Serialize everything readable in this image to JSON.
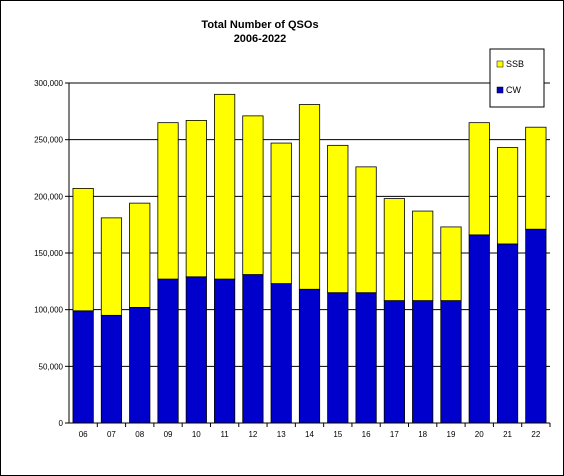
{
  "chart_data": {
    "type": "bar",
    "stacked": true,
    "title": "Total Number of QSOs",
    "subtitle": "2006-2022",
    "categories": [
      "06",
      "07",
      "08",
      "09",
      "10",
      "11",
      "12",
      "13",
      "14",
      "15",
      "16",
      "17",
      "18",
      "19",
      "20",
      "21",
      "22"
    ],
    "series": [
      {
        "name": "CW",
        "color": "#0000CC",
        "values": [
          99000,
          95000,
          102000,
          127000,
          129000,
          127000,
          131000,
          123000,
          118000,
          115000,
          115000,
          108000,
          108000,
          108000,
          166000,
          158000,
          171000
        ]
      },
      {
        "name": "SSB",
        "color": "#FFFF00",
        "values": [
          108000,
          86000,
          92000,
          138000,
          138000,
          163000,
          140000,
          124000,
          163000,
          130000,
          111000,
          90000,
          79000,
          65000,
          99000,
          85000,
          90000
        ]
      }
    ],
    "yticks": [
      "0",
      "50,000",
      "100,000",
      "150,000",
      "200,000",
      "250,000",
      "300,000"
    ],
    "ylim": [
      0,
      300000
    ],
    "xlabel": "",
    "ylabel": "",
    "grid": true,
    "legend_position": "top-right",
    "legend_order": [
      "SSB",
      "CW"
    ]
  }
}
